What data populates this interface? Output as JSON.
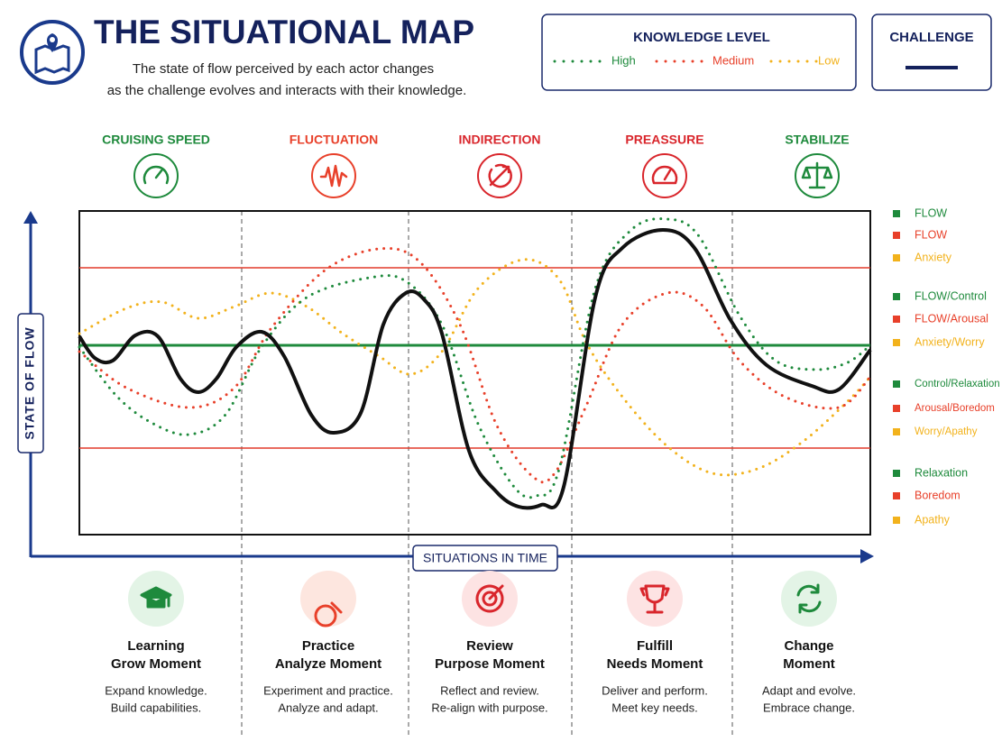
{
  "header": {
    "title": "THE SITUATIONAL MAP",
    "subtitle": [
      "The state of flow perceived by each actor changes",
      "as the challenge evolves and interacts with their knowledge."
    ]
  },
  "knowledge_level": {
    "title": "KNOWLEDGE LEVEL",
    "items": [
      {
        "label": "High",
        "color": "#1e8a3c"
      },
      {
        "label": "Medium",
        "color": "#e8402a"
      },
      {
        "label": "Low",
        "color": "#f2b21c"
      }
    ]
  },
  "challenge": {
    "title": "CHALLENGE"
  },
  "phases": [
    {
      "label": "CRUISING SPEED",
      "color": "#1e8a3c"
    },
    {
      "label": "FLUCTUATION",
      "color": "#e8402a"
    },
    {
      "label": "INDIRECTION",
      "color": "#d9262c"
    },
    {
      "label": "PREASSURE",
      "color": "#d9262c"
    },
    {
      "label": "STABILIZE",
      "color": "#1e8a3c"
    }
  ],
  "axes": {
    "y_label": "STATE OF FLOW",
    "x_label": "SITUATIONS IN TIME"
  },
  "legend": [
    {
      "label": "FLOW",
      "color": "#1e8a3c"
    },
    {
      "label": "FLOW",
      "color": "#e8402a"
    },
    {
      "label": "Anxiety",
      "color": "#f2b21c"
    },
    {
      "label": "FLOW/Control",
      "color": "#1e8a3c"
    },
    {
      "label": "FLOW/Arousal",
      "color": "#e8402a"
    },
    {
      "label": "Anxiety/Worry",
      "color": "#f2b21c"
    },
    {
      "label": "Control/Relaxation",
      "color": "#1e8a3c"
    },
    {
      "label": "Arousal/Boredom",
      "color": "#e8402a"
    },
    {
      "label": "Worry/Apathy",
      "color": "#f2b21c"
    },
    {
      "label": "Relaxation",
      "color": "#1e8a3c"
    },
    {
      "label": "Boredom",
      "color": "#e8402a"
    },
    {
      "label": "Apathy",
      "color": "#f2b21c"
    }
  ],
  "moments": [
    {
      "title": [
        "Learning",
        "Grow Moment"
      ],
      "description": [
        "Expand knowledge.",
        "Build capabilities."
      ]
    },
    {
      "title": [
        "Practice",
        "Analyze Moment"
      ],
      "description": [
        "Experiment and practice.",
        "Analyze and adapt."
      ]
    },
    {
      "title": [
        "Review",
        "Purpose Moment"
      ],
      "description": [
        "Reflect and review.",
        "Re-align with purpose."
      ]
    },
    {
      "title": [
        "Fulfill",
        "Needs Moment"
      ],
      "description": [
        "Deliver and perform.",
        "Meet key needs."
      ]
    },
    {
      "title": [
        "Change",
        "Moment"
      ],
      "description": [
        "Adapt and evolve.",
        "Embrace change."
      ]
    }
  ]
}
